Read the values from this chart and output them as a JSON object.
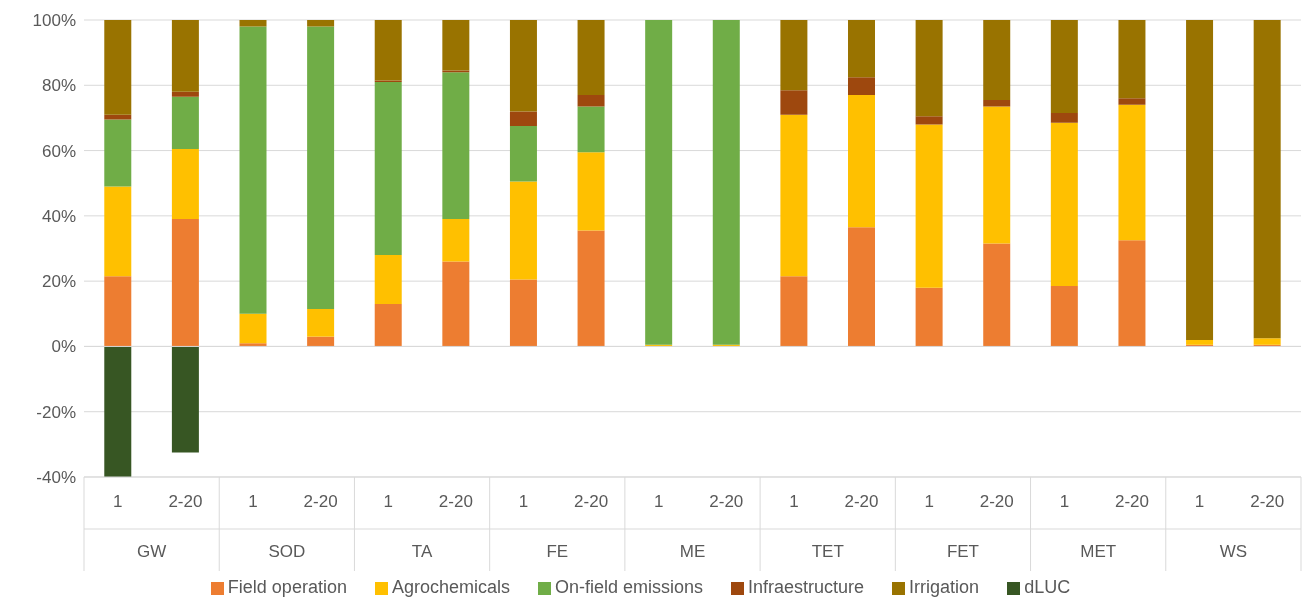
{
  "chart_data": {
    "type": "bar",
    "stacked": true,
    "categories": [
      "1",
      "2-20",
      "1",
      "2-20",
      "1",
      "2-20",
      "1",
      "2-20",
      "1",
      "2-20",
      "1",
      "2-20",
      "1",
      "2-20",
      "1",
      "2-20",
      "1",
      "2-20"
    ],
    "annotations": [
      "GW",
      "SOD",
      "TA",
      "FE",
      "ME",
      "TET",
      "FET",
      "MET",
      "WS"
    ],
    "series": [
      {
        "name": "Field operation",
        "color": "#ed7d31",
        "values": [
          21.5,
          39,
          1,
          3,
          13,
          26,
          20.5,
          35.5,
          0,
          0,
          21.5,
          36.5,
          18,
          31.5,
          18.5,
          32.5,
          0.5,
          0.5
        ]
      },
      {
        "name": "Agrochemicals",
        "color": "#ffc000",
        "values": [
          27.5,
          21.5,
          9,
          8.5,
          15,
          13,
          30,
          24,
          0.5,
          0.5,
          49.5,
          40.5,
          50,
          42,
          50,
          41.5,
          1.5,
          2
        ]
      },
      {
        "name": "On-field emissions",
        "color": "#70ad47",
        "values": [
          20.5,
          16,
          88,
          86.5,
          53,
          45,
          17,
          14,
          99.5,
          99.5,
          0,
          0,
          0,
          0,
          0,
          0,
          0,
          0
        ]
      },
      {
        "name": "Infraestructure",
        "color": "#9e480e",
        "values": [
          1.5,
          1.5,
          0,
          0,
          0.5,
          0.5,
          4.5,
          3.5,
          0,
          0,
          7.5,
          5.5,
          2.5,
          2,
          3,
          2,
          0,
          0
        ]
      },
      {
        "name": "Irrigation",
        "color": "#997300",
        "values": [
          29,
          22,
          2,
          2,
          18.5,
          15.5,
          28,
          23,
          0,
          0,
          21.5,
          17.5,
          29.5,
          24.5,
          28.5,
          24,
          98,
          97.5
        ]
      },
      {
        "name": "dLUC",
        "color": "#375623",
        "values": [
          -40,
          -32.5,
          0,
          0,
          0,
          0,
          0,
          0,
          0,
          0,
          0,
          0,
          0,
          0,
          0,
          0,
          0,
          0
        ]
      }
    ],
    "ylim": [
      -40,
      100
    ],
    "yticks": [
      {
        "value": -40,
        "label": "-40%"
      },
      {
        "value": -20,
        "label": "-20%"
      },
      {
        "value": 0,
        "label": "0%"
      },
      {
        "value": 20,
        "label": "20%"
      },
      {
        "value": 40,
        "label": "40%"
      },
      {
        "value": 60,
        "label": "60%"
      },
      {
        "value": 80,
        "label": "80%"
      },
      {
        "value": 100,
        "label": "100%"
      }
    ],
    "grid": "y",
    "legend": "bottom"
  }
}
